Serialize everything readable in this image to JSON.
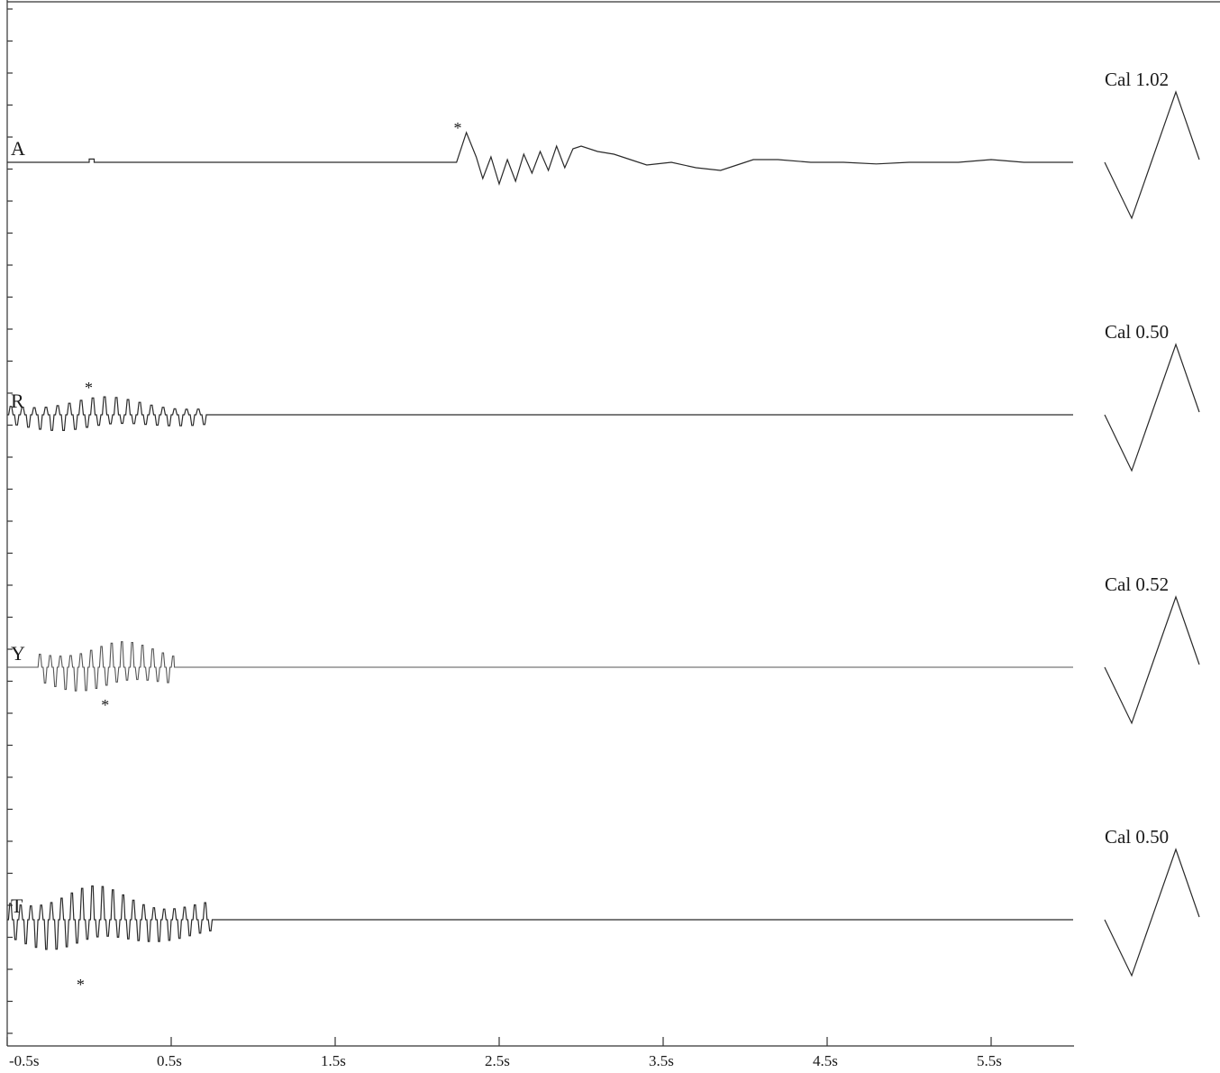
{
  "chart_data": {
    "type": "line",
    "title": "",
    "xlabel": "",
    "ylabel": "",
    "x_unit": "s",
    "xlim": [
      -0.5,
      6.0
    ],
    "x_ticks": [
      -0.5,
      0.5,
      1.5,
      2.5,
      3.5,
      4.5,
      5.5
    ],
    "x_tick_labels": [
      "-0.5s",
      "0.5s",
      "1.5s",
      "2.5s",
      "3.5s",
      "4.5s",
      "5.5s"
    ],
    "grid": false,
    "series": [
      {
        "name": "A",
        "calibration_label": "Cal 1.02",
        "peak_marker": "*",
        "peak_time": 2.25,
        "burst": [
          [
            -0.5,
            0
          ],
          [
            0.0,
            0
          ],
          [
            0.0,
            0.06
          ],
          [
            0.03,
            0.06
          ],
          [
            0.03,
            0
          ],
          [
            2.24,
            0
          ],
          [
            2.3,
            0.55
          ],
          [
            2.36,
            0.1
          ],
          [
            2.4,
            -0.3
          ],
          [
            2.45,
            0.1
          ],
          [
            2.5,
            -0.4
          ],
          [
            2.55,
            0.05
          ],
          [
            2.6,
            -0.35
          ],
          [
            2.65,
            0.15
          ],
          [
            2.7,
            -0.2
          ],
          [
            2.75,
            0.2
          ],
          [
            2.8,
            -0.15
          ],
          [
            2.85,
            0.3
          ],
          [
            2.9,
            -0.1
          ],
          [
            2.95,
            0.25
          ],
          [
            3.0,
            0.3
          ],
          [
            3.1,
            0.2
          ],
          [
            3.2,
            0.15
          ],
          [
            3.3,
            0.05
          ],
          [
            3.4,
            -0.05
          ],
          [
            3.55,
            0.0
          ],
          [
            3.7,
            -0.1
          ],
          [
            3.85,
            -0.15
          ],
          [
            3.95,
            -0.05
          ],
          [
            4.05,
            0.05
          ],
          [
            4.2,
            0.05
          ],
          [
            4.4,
            0.0
          ],
          [
            4.6,
            0.0
          ],
          [
            4.8,
            -0.03
          ],
          [
            5.0,
            0.0
          ],
          [
            5.3,
            0.0
          ],
          [
            5.5,
            0.05
          ],
          [
            5.7,
            0.0
          ],
          [
            6.0,
            0.0
          ]
        ]
      },
      {
        "name": "R",
        "calibration_label": "Cal 0.50",
        "peak_marker": "*",
        "peak_time": 0.0,
        "burst_start": -0.5,
        "burst_end": 0.72,
        "burst_frequency_hz": 14,
        "burst_amplitude": 0.35
      },
      {
        "name": "Y",
        "calibration_label": "Cal 0.52",
        "peak_marker": "*",
        "peak_time": 0.1,
        "burst_start": -0.32,
        "burst_end": 0.52,
        "burst_frequency_hz": 16,
        "burst_amplitude": 0.5
      },
      {
        "name": "T",
        "calibration_label": "Cal 0.50",
        "peak_marker": "*",
        "peak_time": -0.05,
        "burst_start": -0.5,
        "burst_end": 0.75,
        "burst_frequency_hz": 16,
        "burst_amplitude": 0.65
      }
    ]
  }
}
